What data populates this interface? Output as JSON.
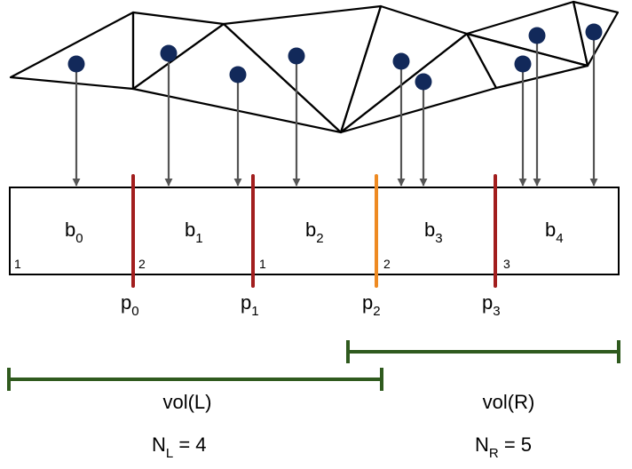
{
  "colors": {
    "mesh": "#000000",
    "point": "#12295a",
    "arrow": "#555555",
    "split_red": "#a21e1e",
    "split_orange": "#ee8a22",
    "range": "#2f5a1e"
  },
  "bins": [
    {
      "base": "b",
      "sub": "0",
      "corner": "1"
    },
    {
      "base": "b",
      "sub": "1",
      "corner": "2"
    },
    {
      "base": "b",
      "sub": "2",
      "corner": "1"
    },
    {
      "base": "b",
      "sub": "3",
      "corner": "2"
    },
    {
      "base": "b",
      "sub": "4",
      "corner": "3"
    }
  ],
  "planes": [
    {
      "base": "p",
      "sub": "0"
    },
    {
      "base": "p",
      "sub": "1"
    },
    {
      "base": "p",
      "sub": "2"
    },
    {
      "base": "p",
      "sub": "3"
    }
  ],
  "volumes": {
    "left": "vol(L)",
    "right": "vol(R)"
  },
  "counts": {
    "left": {
      "base": "N",
      "sub": "L",
      "rest": " = 4"
    },
    "right": {
      "base": "N",
      "sub": "R",
      "rest": " = 5"
    }
  }
}
